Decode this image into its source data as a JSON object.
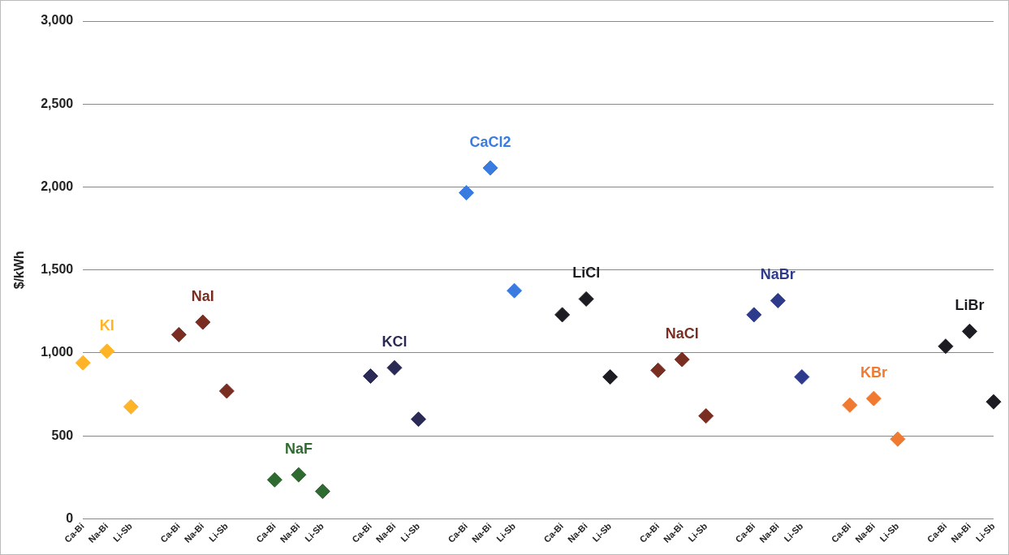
{
  "chart_data": {
    "type": "scatter",
    "ylabel": "$/kWh",
    "marker": "diamond",
    "grid": "y",
    "legend": false,
    "categories": [
      "Ca-Bi",
      "Na-Bi",
      "Li-Sb",
      null,
      "Ca-Bi",
      "Na-Bi",
      "Li-Sb",
      null,
      "Ca-Bi",
      "Na-Bi",
      "Li-Sb",
      null,
      "Ca-Bi",
      "Na-Bi",
      "Li-Sb",
      null,
      "Ca-Bi",
      "Na-Bi",
      "Li-Sb",
      null,
      "Ca-Bi",
      "Na-Bi",
      "Li-Sb",
      null,
      "Ca-Bi",
      "Na-Bi",
      "Li-Sb",
      null,
      "Ca-Bi",
      "Na-Bi",
      "Li-Sb",
      null,
      "Ca-Bi",
      "Na-Bi",
      "Li-Sb",
      null,
      "Ca-Bi",
      "Na-Bi",
      "Li-Sb"
    ],
    "ylim": [
      0,
      3000
    ],
    "yticks": [
      0,
      500,
      {
        "value": 1000,
        "label": "1,000"
      },
      {
        "value": 1500,
        "label": "1,500"
      },
      {
        "value": 2000,
        "label": "2,000"
      },
      {
        "value": 2500,
        "label": "2,500"
      },
      {
        "value": 3000,
        "label": "3,000"
      }
    ],
    "series": [
      {
        "name": "KI",
        "color": "#ffb428",
        "values": [
          940,
          1010,
          675,
          null,
          null,
          null,
          null,
          null,
          null,
          null,
          null,
          null,
          null,
          null,
          null,
          null,
          null,
          null,
          null,
          null,
          null,
          null,
          null,
          null,
          null,
          null,
          null,
          null,
          null,
          null,
          null,
          null,
          null,
          null,
          null,
          null,
          null,
          null,
          null
        ]
      },
      {
        "name": "NaI",
        "color": "#7a2e22",
        "values": [
          null,
          null,
          null,
          null,
          1110,
          1185,
          770,
          null,
          null,
          null,
          null,
          null,
          null,
          null,
          null,
          null,
          null,
          null,
          null,
          null,
          null,
          null,
          null,
          null,
          null,
          null,
          null,
          null,
          null,
          null,
          null,
          null,
          null,
          null,
          null,
          null,
          null,
          null,
          null
        ]
      },
      {
        "name": "NaF",
        "color": "#2f6a30",
        "values": [
          null,
          null,
          null,
          null,
          null,
          null,
          null,
          null,
          235,
          265,
          165,
          null,
          null,
          null,
          null,
          null,
          null,
          null,
          null,
          null,
          null,
          null,
          null,
          null,
          null,
          null,
          null,
          null,
          null,
          null,
          null,
          null,
          null,
          null,
          null,
          null,
          null,
          null,
          null
        ]
      },
      {
        "name": "KCl",
        "color": "#2b2a55",
        "values": [
          null,
          null,
          null,
          null,
          null,
          null,
          null,
          null,
          null,
          null,
          null,
          null,
          860,
          910,
          600,
          null,
          null,
          null,
          null,
          null,
          null,
          null,
          null,
          null,
          null,
          null,
          null,
          null,
          null,
          null,
          null,
          null,
          null,
          null,
          null,
          null,
          null,
          null,
          null
        ]
      },
      {
        "name": "CaCl2",
        "color": "#3a7be0",
        "values": [
          null,
          null,
          null,
          null,
          null,
          null,
          null,
          null,
          null,
          null,
          null,
          null,
          null,
          null,
          null,
          null,
          1965,
          2115,
          1375,
          null,
          null,
          null,
          null,
          null,
          null,
          null,
          null,
          null,
          null,
          null,
          null,
          null,
          null,
          null,
          null,
          null,
          null,
          null,
          null
        ]
      },
      {
        "name": "LiCl",
        "color": "#1c1c22",
        "values": [
          null,
          null,
          null,
          null,
          null,
          null,
          null,
          null,
          null,
          null,
          null,
          null,
          null,
          null,
          null,
          null,
          null,
          null,
          null,
          null,
          1230,
          1325,
          855,
          null,
          null,
          null,
          null,
          null,
          null,
          null,
          null,
          null,
          null,
          null,
          null,
          null,
          null,
          null,
          null
        ]
      },
      {
        "name": "NaCl",
        "color": "#7a2e22",
        "values": [
          null,
          null,
          null,
          null,
          null,
          null,
          null,
          null,
          null,
          null,
          null,
          null,
          null,
          null,
          null,
          null,
          null,
          null,
          null,
          null,
          null,
          null,
          null,
          null,
          895,
          960,
          620,
          null,
          null,
          null,
          null,
          null,
          null,
          null,
          null,
          null,
          null,
          null,
          null
        ]
      },
      {
        "name": "NaBr",
        "color": "#2e3a8c",
        "values": [
          null,
          null,
          null,
          null,
          null,
          null,
          null,
          null,
          null,
          null,
          null,
          null,
          null,
          null,
          null,
          null,
          null,
          null,
          null,
          null,
          null,
          null,
          null,
          null,
          null,
          null,
          null,
          null,
          1230,
          1315,
          855,
          null,
          null,
          null,
          null,
          null,
          null,
          null,
          null
        ]
      },
      {
        "name": "KBr",
        "color": "#f07a32",
        "values": [
          null,
          null,
          null,
          null,
          null,
          null,
          null,
          null,
          null,
          null,
          null,
          null,
          null,
          null,
          null,
          null,
          null,
          null,
          null,
          null,
          null,
          null,
          null,
          null,
          null,
          null,
          null,
          null,
          null,
          null,
          null,
          null,
          685,
          725,
          480,
          null,
          null,
          null,
          null
        ]
      },
      {
        "name": "LiBr",
        "color": "#1c1c22",
        "values": [
          null,
          null,
          null,
          null,
          null,
          null,
          null,
          null,
          null,
          null,
          null,
          null,
          null,
          null,
          null,
          null,
          null,
          null,
          null,
          null,
          null,
          null,
          null,
          null,
          null,
          null,
          null,
          null,
          null,
          null,
          null,
          null,
          null,
          null,
          null,
          null,
          1040,
          1130,
          705
        ]
      }
    ]
  }
}
